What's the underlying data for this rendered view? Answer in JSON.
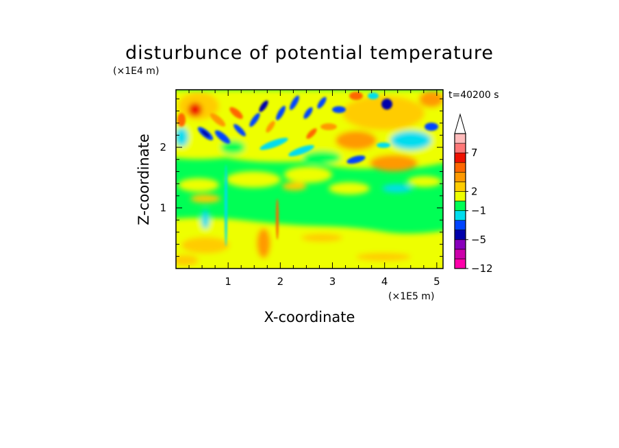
{
  "chart_data": {
    "type": "heatmap",
    "title": "disturbunce of potential temperature",
    "time_label": "t=40200 s",
    "xlabel": "X-coordinate",
    "ylabel": "Z-coordinate",
    "x_unit": "(×1E5 m)",
    "y_unit": "(×1E4 m)",
    "xlim": [
      0,
      5.12
    ],
    "ylim": [
      0,
      2.95
    ],
    "x_ticks": [
      {
        "value": 1,
        "label": "1"
      },
      {
        "value": 2,
        "label": "2"
      },
      {
        "value": 3,
        "label": "3"
      },
      {
        "value": 4,
        "label": "4"
      },
      {
        "value": 5,
        "label": "5"
      }
    ],
    "y_ticks": [
      {
        "value": 1,
        "label": "1"
      },
      {
        "value": 2,
        "label": "2"
      }
    ],
    "colorbar": {
      "labels": [
        {
          "value": 7,
          "label": "7"
        },
        {
          "value": 2,
          "label": "2"
        },
        {
          "value": -1,
          "label": "−1"
        },
        {
          "value": -5,
          "label": "−5"
        },
        {
          "value": -12,
          "label": "−12"
        }
      ],
      "levels": [
        {
          "color": "#ff00aa"
        },
        {
          "color": "#cc00aa"
        },
        {
          "color": "#8800bb"
        },
        {
          "color": "#0000aa"
        },
        {
          "color": "#0044ff"
        },
        {
          "color": "#00ddee"
        },
        {
          "color": "#00ff55"
        },
        {
          "color": "#eeff00"
        },
        {
          "color": "#ffcc00"
        },
        {
          "color": "#ff9900"
        },
        {
          "color": "#ff6600"
        },
        {
          "color": "#ee1100"
        },
        {
          "color": "#ff7777"
        },
        {
          "color": "#ffbbbb"
        }
      ],
      "extend_top_color": "#ffffff"
    },
    "field_regions": [
      {
        "x": [
          0,
          5.12
        ],
        "z": [
          0,
          0.1
        ],
        "value": "yellow"
      },
      {
        "x": [
          0,
          5.12
        ],
        "z": [
          0.1,
          0.75
        ],
        "value": "yellow"
      },
      {
        "x": [
          0,
          5.12
        ],
        "z": [
          0.75,
          1.6
        ],
        "value": "green"
      },
      {
        "x": [
          0,
          5.12
        ],
        "z": [
          1.6,
          2.95
        ],
        "value": "mixed"
      }
    ]
  }
}
